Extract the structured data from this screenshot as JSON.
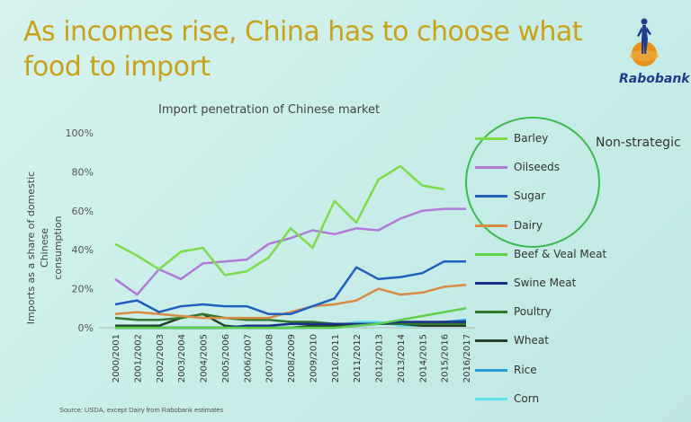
{
  "slide": {
    "title": "As incomes rise, China has to choose what food to import",
    "logo_text": "Rabobank",
    "non_strategic_label": "Non-strategic",
    "source": "Source: USDA, except Dairy from Rabobank estimates"
  },
  "colors": {
    "title": "#c9a11a",
    "circle": "#3dbb4a",
    "logo_orange": "#e8931e",
    "logo_blue": "#1f3d8a"
  },
  "chart_data": {
    "type": "line",
    "title": "Import penetration of Chinese market",
    "ylabel": "Imports as a share of domestic Chinese consumption",
    "ylabel_lines": [
      "Imports as a share of domestic Chinese",
      "consumption"
    ],
    "y_ticks": [
      "0%",
      "20%",
      "40%",
      "60%",
      "80%",
      "100%"
    ],
    "ylim": [
      0,
      100
    ],
    "grid": false,
    "legend_position": "right",
    "categories": [
      "2000/2001",
      "2001/2002",
      "2002/2003",
      "2003/2004",
      "2004/2005",
      "2005/2006",
      "2006/2007",
      "2007/2008",
      "2008/2009",
      "2009/2010",
      "2010/2011",
      "2011/2012",
      "2012/2013",
      "2013/2014",
      "2014/2015",
      "2015/2016",
      "2016/2017"
    ],
    "series": [
      {
        "name": "Barley",
        "color": "#7ddc4a",
        "values": [
          43,
          37,
          30,
          39,
          41,
          27,
          29,
          36,
          51,
          41,
          65,
          54,
          76,
          83,
          73,
          71,
          null
        ]
      },
      {
        "name": "Oilseeds",
        "color": "#b07ad6",
        "values": [
          25,
          17,
          30,
          25,
          33,
          34,
          35,
          43,
          46,
          50,
          48,
          51,
          50,
          56,
          60,
          61,
          61
        ]
      },
      {
        "name": "Sugar",
        "color": "#1f5fbf",
        "values": [
          12,
          14,
          8,
          11,
          12,
          11,
          11,
          7,
          7,
          11,
          15,
          31,
          25,
          26,
          28,
          34,
          34
        ]
      },
      {
        "name": "Dairy",
        "color": "#d98a45",
        "values": [
          7,
          8,
          7,
          6,
          5,
          5,
          5,
          5,
          8,
          11,
          12,
          14,
          20,
          17,
          18,
          21,
          22
        ]
      },
      {
        "name": "Beef & Veal Meat",
        "color": "#5fd04a",
        "values": [
          0,
          0,
          0,
          0,
          0,
          0,
          0,
          0,
          0,
          0,
          0,
          1,
          2,
          4,
          6,
          8,
          10
        ]
      },
      {
        "name": "Swine Meat",
        "color": "#1a2f8a",
        "values": [
          0,
          0,
          0,
          0,
          0,
          0,
          1,
          1,
          2,
          2,
          2,
          2,
          2,
          3,
          3,
          3,
          3
        ]
      },
      {
        "name": "Poultry",
        "color": "#2f7a2a",
        "values": [
          5,
          4,
          4,
          5,
          7,
          5,
          4,
          4,
          3,
          3,
          2,
          2,
          2,
          2,
          2,
          2,
          2
        ]
      },
      {
        "name": "Wheat",
        "color": "#24402a",
        "values": [
          1,
          1,
          1,
          5,
          7,
          1,
          0,
          0,
          0,
          1,
          1,
          2,
          2,
          2,
          1,
          1,
          1
        ]
      },
      {
        "name": "Rice",
        "color": "#2a9ad6",
        "values": [
          0,
          0,
          0,
          0,
          0,
          0,
          0,
          0,
          0,
          0,
          0,
          1,
          2,
          2,
          2,
          3,
          4
        ]
      },
      {
        "name": "Corn",
        "color": "#63e0ea",
        "values": [
          0,
          0,
          0,
          0,
          0,
          0,
          0,
          0,
          0,
          0,
          1,
          3,
          3,
          1,
          1,
          1,
          2
        ]
      }
    ]
  }
}
